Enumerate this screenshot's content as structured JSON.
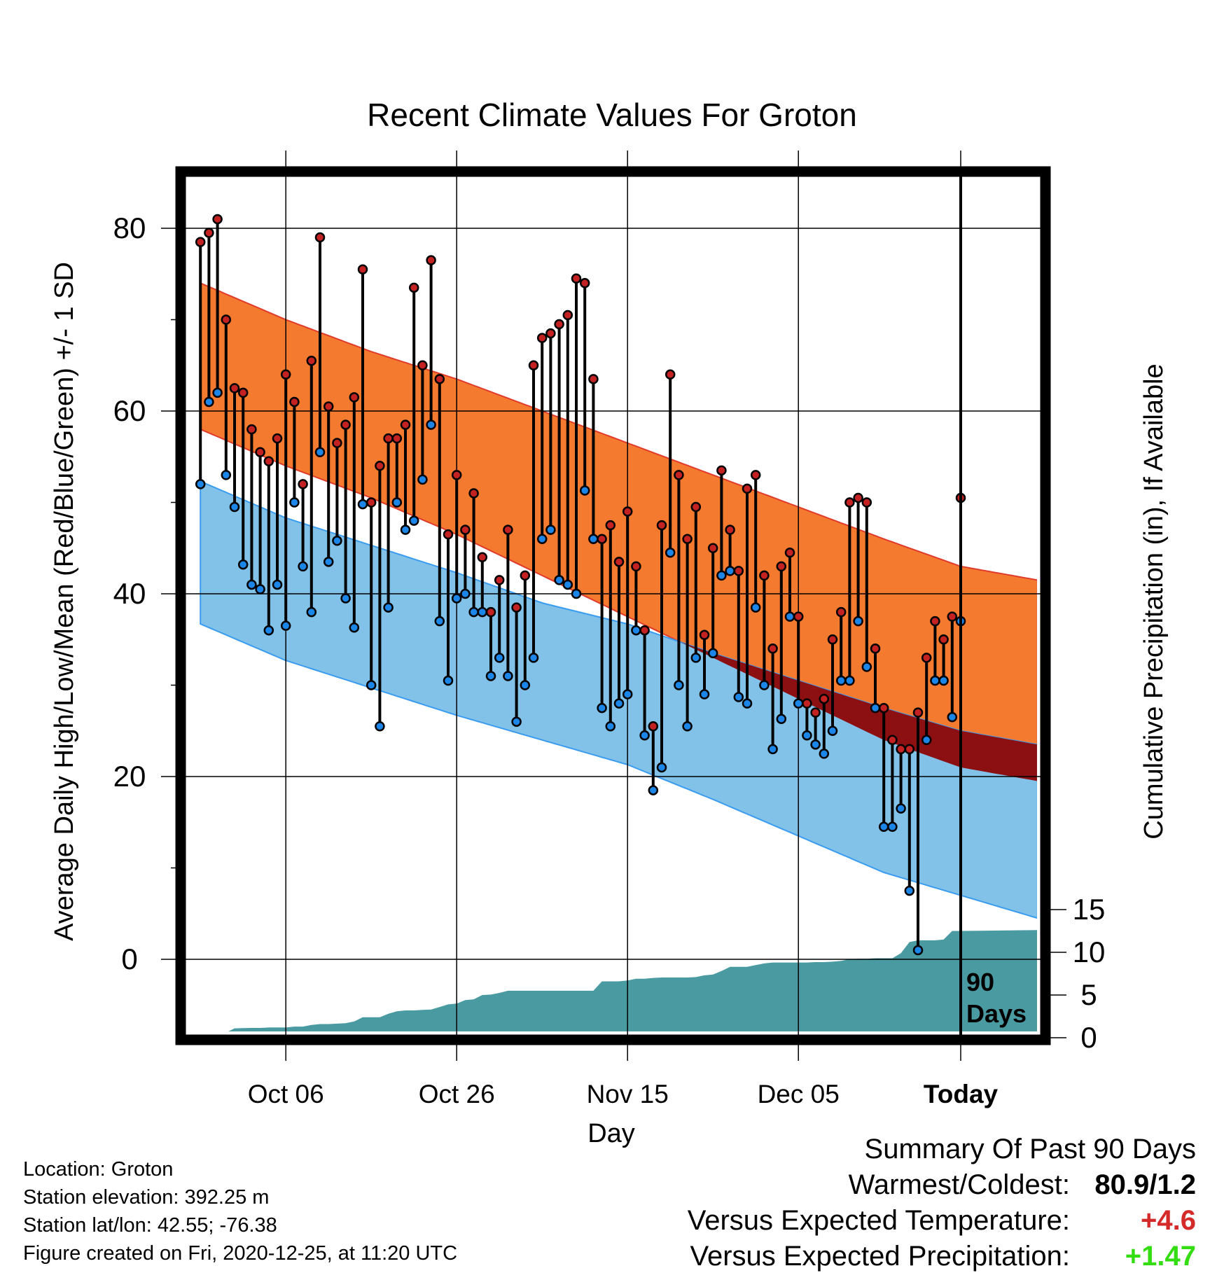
{
  "chart_data": {
    "type": "line",
    "title": "Recent Climate Values For Groton",
    "xlabel": "Day",
    "ylabel": "Average Daily High/Low/Mean (Red/Blue/Green) +/- 1 SD",
    "y2label": "Cumulative Precipitation (in), If Available",
    "ylim": [
      -9,
      87
    ],
    "y2lim": [
      0,
      22.5
    ],
    "xlim_day": [
      -89,
      10
    ],
    "x_ticks": [
      {
        "day": -79,
        "label": "Oct 06"
      },
      {
        "day": -59,
        "label": "Oct 26"
      },
      {
        "day": -39,
        "label": "Nov 15"
      },
      {
        "day": -19,
        "label": "Dec 05"
      },
      {
        "day": 0,
        "label": "Today"
      }
    ],
    "y_ticks": [
      0,
      20,
      40,
      60,
      80
    ],
    "y2_ticks": [
      0,
      5,
      10,
      15
    ],
    "today_marker_label": [
      "90",
      "Days"
    ],
    "grid": true,
    "colors": {
      "high_band": "#f47a30",
      "high_mean": "#d02626",
      "low_band": "#82c1e8",
      "low_mean": "#1e8ef0",
      "mean_line": "#22ee11",
      "overlap": "#8c0f12",
      "precip": "#4a9aa2",
      "high_dot": "#c42222",
      "low_dot": "#1c86e8"
    },
    "normals": {
      "days": [
        -89,
        -79,
        -69,
        -59,
        -49,
        -39,
        -29,
        -19,
        -9,
        0,
        9
      ],
      "high_mean": [
        66,
        62,
        58.5,
        55,
        51,
        47,
        43,
        39,
        35,
        32,
        30.5
      ],
      "high_sd": [
        8,
        8,
        8,
        8.5,
        9,
        9.5,
        10,
        10.5,
        11,
        11,
        11
      ],
      "low_mean": [
        44.5,
        40.5,
        37.5,
        34.5,
        31.5,
        29,
        25.5,
        22,
        18.5,
        16,
        14
      ],
      "low_sd": [
        7.8,
        7.8,
        7.8,
        7.8,
        7.5,
        7.7,
        8,
        8.5,
        9,
        9,
        9.5
      ],
      "mean": [
        54,
        51,
        48,
        44.5,
        41,
        37.5,
        33.5,
        29.5,
        25.5,
        23,
        21
      ]
    },
    "days": [
      -89,
      -88,
      -87,
      -86,
      -85,
      -84,
      -83,
      -82,
      -81,
      -80,
      -79,
      -78,
      -77,
      -76,
      -75,
      -74,
      -73,
      -72,
      -71,
      -70,
      -69,
      -68,
      -67,
      -66,
      -65,
      -64,
      -63,
      -62,
      -61,
      -60,
      -59,
      -58,
      -57,
      -56,
      -55,
      -54,
      -53,
      -52,
      -51,
      -50,
      -49,
      -48,
      -47,
      -46,
      -45,
      -44,
      -43,
      -42,
      -41,
      -40,
      -39,
      -38,
      -37,
      -36,
      -35,
      -34,
      -33,
      -32,
      -31,
      -30,
      -29,
      -28,
      -27,
      -26,
      -25,
      -24,
      -23,
      -22,
      -21,
      -20,
      -19,
      -18,
      -17,
      -16,
      -15,
      -14,
      -13,
      -12,
      -11,
      -10,
      -9,
      -8,
      -7,
      -6,
      -5,
      -4,
      -3,
      -2,
      -1,
      0
    ],
    "highs": [
      78.5,
      79.5,
      81,
      70,
      62.5,
      62,
      58,
      55.5,
      54.5,
      57,
      64,
      61,
      52,
      65.5,
      79,
      60.5,
      56.5,
      58.5,
      61.5,
      75.5,
      50,
      54,
      57,
      57,
      58.5,
      73.5,
      65,
      76.5,
      63.5,
      46.5,
      53,
      47,
      51,
      44,
      38,
      41.5,
      47,
      38.5,
      42,
      65,
      68,
      68.5,
      69.5,
      70.5,
      74.5,
      74,
      63.5,
      46,
      47.5,
      43.5,
      49,
      43,
      36,
      25.5,
      47.5,
      64,
      53,
      46,
      49.5,
      35.5,
      45,
      53.5,
      47,
      42.5,
      51.5,
      53,
      42,
      34,
      43,
      44.5,
      37.5,
      28,
      27,
      28.5,
      35,
      38,
      50,
      50.5,
      50,
      34,
      27.5,
      24,
      23,
      23,
      27,
      33,
      37,
      35,
      37.5,
      50.5
    ],
    "lows": [
      52,
      61,
      62,
      53,
      49.5,
      43.2,
      41,
      40.5,
      36,
      41,
      36.5,
      50,
      43,
      38,
      55.5,
      43.5,
      45.8,
      39.5,
      36.3,
      49.8,
      30,
      25.5,
      38.5,
      50,
      47,
      48,
      52.5,
      58.5,
      37,
      30.5,
      39.5,
      40,
      38,
      38,
      31,
      33,
      31,
      26,
      30,
      33,
      46,
      47,
      41.5,
      41,
      40,
      51.3,
      46,
      27.5,
      25.5,
      28,
      29,
      36,
      24.5,
      18.5,
      21,
      44.5,
      30,
      25.5,
      33,
      29,
      33.5,
      42,
      42.5,
      28.7,
      28,
      38.5,
      30,
      23,
      26.3,
      37.5,
      28,
      24.5,
      23.5,
      22.5,
      25,
      30.5,
      30.5,
      37,
      32,
      27.5,
      14.5,
      14.5,
      16.5,
      7.5,
      1,
      24,
      30.5,
      30.5,
      26.5,
      37
    ],
    "precip_days": [
      -89,
      -87,
      -86,
      -85,
      -84,
      -83,
      -82,
      -81,
      -80,
      -79,
      -78,
      -77,
      -76,
      -75,
      -74,
      -73,
      -72,
      -71,
      -70,
      -69,
      -68,
      -67,
      -66,
      -65,
      -64,
      -63,
      -62,
      -61,
      -60,
      -59,
      -58,
      -57,
      -56,
      -55,
      -54,
      -53,
      -52,
      -51,
      -50,
      -49,
      -48,
      -47,
      -46,
      -45,
      -44,
      -43,
      -42,
      -41,
      -40,
      -39,
      -38,
      -37,
      -36,
      -35,
      -34,
      -33,
      -32,
      -31,
      -30,
      -29,
      -28,
      -27,
      -26,
      -25,
      -24,
      -23,
      -22,
      -21,
      -20,
      -19,
      -18,
      -17,
      -16,
      -15,
      -14,
      -13,
      -12,
      -11,
      -10,
      -9,
      -8,
      -7,
      -6,
      -5,
      -4,
      -3,
      -2,
      -1,
      0,
      9
    ],
    "precip_cum": [
      0,
      0,
      0.6,
      1.1,
      1.12,
      1.15,
      1.15,
      1.2,
      1.2,
      1.2,
      1.3,
      1.3,
      1.5,
      1.6,
      1.6,
      1.65,
      1.7,
      1.9,
      2.4,
      2.4,
      2.4,
      2.8,
      3.1,
      3.2,
      3.2,
      3.25,
      3.3,
      3.6,
      3.9,
      4,
      4.4,
      4.5,
      5,
      5.05,
      5.25,
      5.5,
      5.5,
      5.5,
      5.5,
      5.5,
      5.5,
      5.5,
      5.5,
      5.5,
      5.5,
      5.5,
      6.6,
      6.6,
      6.6,
      6.7,
      6.9,
      6.9,
      7,
      7.05,
      7.05,
      7.05,
      7.05,
      7.1,
      7.3,
      7.4,
      7.8,
      8.3,
      8.3,
      8.3,
      8.5,
      8.7,
      8.8,
      8.8,
      8.8,
      8.8,
      8.8,
      8.85,
      8.85,
      8.9,
      9,
      9.2,
      9.25,
      9.25,
      9.3,
      9.3,
      9.3,
      9.9,
      11.2,
      11.4,
      11.4,
      11.4,
      11.5,
      12.5,
      12.5,
      12.6
    ]
  },
  "location": "Location: Groton",
  "elevation": "Station elevation: 392.25 m",
  "latlon": "Station lat/lon: 42.55; -76.38",
  "created": "Figure created on Fri, 2020-12-25, at 11:20 UTC",
  "summary": {
    "heading": "Summary Of Past 90 Days",
    "warmest_label": "Warmest/Coldest:",
    "warmest_value": "80.9/1.2",
    "temp_label": "Versus Expected Temperature:",
    "temp_value": "+4.6",
    "temp_color": "#d42a2a",
    "precip_label": "Versus Expected Precipitation:",
    "precip_value": "+1.47",
    "precip_color": "#33dd11"
  }
}
